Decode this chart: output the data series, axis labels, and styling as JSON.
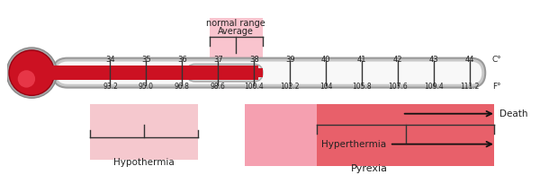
{
  "fig_width": 6.0,
  "fig_height": 1.95,
  "dpi": 100,
  "fahrenheit_labels": [
    "93.2",
    "95.0",
    "96.8",
    "98.6",
    "100.4",
    "102.2",
    "104",
    "105.8",
    "107.6",
    "109.4",
    "111.2"
  ],
  "celsius_labels": [
    "34",
    "35",
    "36",
    "37",
    "38",
    "39",
    "40",
    "41",
    "42",
    "43",
    "44"
  ],
  "red_color": "#CC1122",
  "hypothermia_color": "#F5C8CE",
  "pyrexia_light_color": "#F5A0B0",
  "hyperthermia_color": "#E8606A",
  "normal_color": "#F9C4CE",
  "bg_color": "#FFFFFF",
  "tube_gray": "#C8C8C8",
  "tube_light": "#EBEBEB",
  "tube_white": "#F8F8F8"
}
